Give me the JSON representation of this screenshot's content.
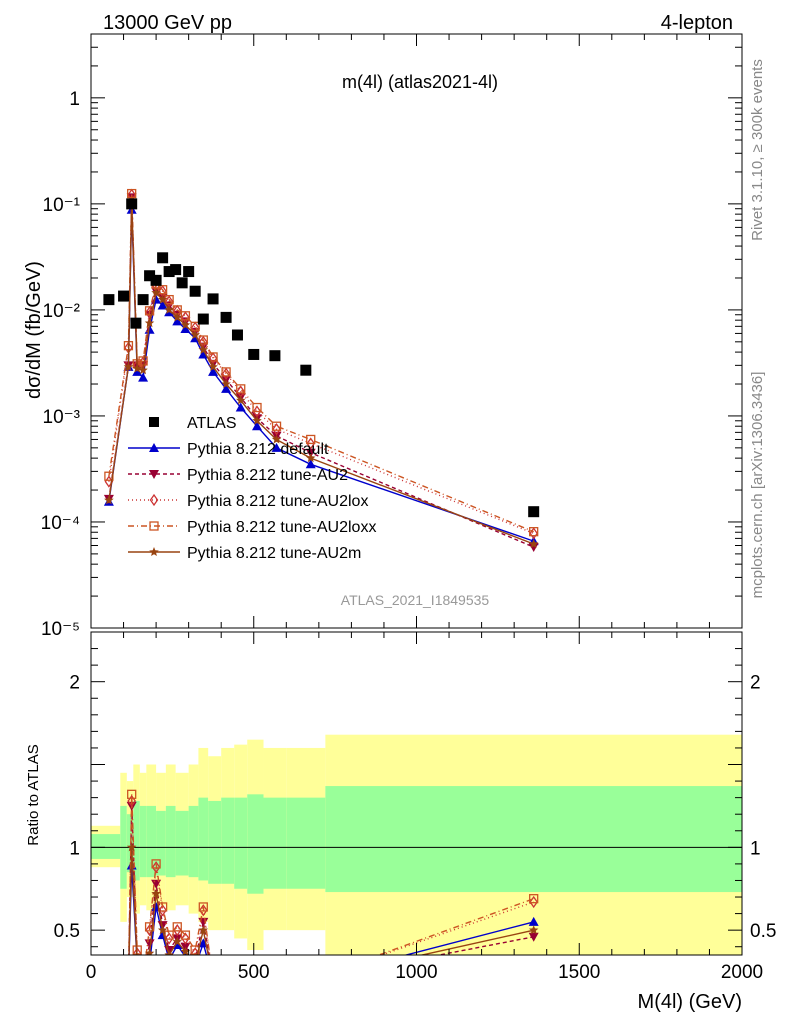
{
  "header": {
    "left": "13000 GeV pp",
    "right": "4-lepton"
  },
  "side_labels": {
    "rivet": "Rivet 3.1.10, ≥ 300k events",
    "mcplots": "mcplots.cern.ch [arXiv:1306.3436]"
  },
  "chart_data": {
    "type": "line",
    "title": "m(4l) (atlas2021-4l)",
    "watermark": "ATLAS_2021_I1849535",
    "xlabel": "M(4l) (GeV)",
    "ylabel": "dσ/dM (fb/GeV)",
    "ratio_ylabel": "Ratio to ATLAS",
    "xlim": [
      0,
      2000
    ],
    "ylim": [
      1e-05,
      4
    ],
    "ylog": true,
    "ratio_ylim": [
      0.35,
      2.3
    ],
    "x_ticks": [
      "0",
      "500",
      "1000",
      "1500",
      "2000"
    ],
    "y_ticks": [
      "10⁻⁵",
      "10⁻⁴",
      "10⁻³",
      "10⁻²",
      "10⁻¹",
      "1"
    ],
    "ratio_ticks": [
      "0.5",
      "1",
      "2"
    ],
    "legend_position": "bottom-left",
    "data": {
      "name": "ATLAS",
      "x": [
        55,
        100,
        125,
        138,
        160,
        180,
        200,
        220,
        240,
        260,
        280,
        300,
        320,
        345,
        375,
        415,
        450,
        500,
        565,
        660,
        1360
      ],
      "y": [
        0.0125,
        0.0135,
        0.1,
        0.0075,
        0.0125,
        0.021,
        0.019,
        0.031,
        0.023,
        0.024,
        0.018,
        0.023,
        0.015,
        0.0082,
        0.0127,
        0.0085,
        0.0058,
        0.0038,
        0.0037,
        0.0027,
        0.000125
      ]
    },
    "series": [
      {
        "name": "Pythia 8.212 default",
        "color": "#0000cc",
        "dash": "",
        "marker": "triangle-up",
        "x": [
          55,
          115,
          125,
          142,
          160,
          180,
          200,
          220,
          240,
          265,
          290,
          320,
          345,
          375,
          415,
          460,
          510,
          570,
          675,
          1360
        ],
        "y": [
          0.000155,
          0.0029,
          0.088,
          0.0026,
          0.0023,
          0.0065,
          0.0125,
          0.011,
          0.0095,
          0.0078,
          0.0066,
          0.0054,
          0.0038,
          0.0026,
          0.0018,
          0.0012,
          0.0008,
          0.0005,
          0.00035,
          6.6e-05
        ],
        "ratio": [
          null,
          null,
          0.89,
          0.3,
          null,
          0.3,
          0.64,
          0.47,
          0.32,
          0.41,
          0.34,
          0.28,
          0.42,
          null,
          null,
          null,
          null,
          null,
          null,
          0.55
        ]
      },
      {
        "name": "Pythia 8.212 tune-AU2",
        "color": "#990033",
        "dash": "4,3",
        "marker": "triangle-down",
        "x": [
          55,
          115,
          125,
          142,
          160,
          180,
          200,
          220,
          240,
          265,
          290,
          320,
          345,
          375,
          415,
          460,
          510,
          570,
          675,
          1360
        ],
        "y": [
          0.000165,
          0.003,
          0.115,
          0.003,
          0.003,
          0.009,
          0.015,
          0.013,
          0.011,
          0.009,
          0.0078,
          0.0062,
          0.0045,
          0.0031,
          0.0022,
          0.0015,
          0.00095,
          0.00065,
          0.00045,
          5.8e-05
        ],
        "ratio": [
          null,
          null,
          1.25,
          0.32,
          null,
          0.42,
          0.78,
          0.53,
          0.38,
          0.45,
          0.4,
          0.32,
          0.55,
          null,
          null,
          null,
          null,
          null,
          null,
          0.46
        ]
      },
      {
        "name": "Pythia 8.212 tune-AU2lox",
        "color": "#cc3333",
        "dash": "1,3",
        "marker": "diamond",
        "x": [
          55,
          115,
          125,
          142,
          160,
          180,
          200,
          220,
          240,
          265,
          290,
          320,
          345,
          375,
          415,
          460,
          510,
          570,
          675,
          1360
        ],
        "y": [
          0.00024,
          0.0044,
          0.122,
          0.003,
          0.0032,
          0.0095,
          0.017,
          0.015,
          0.012,
          0.0098,
          0.0085,
          0.0068,
          0.005,
          0.0035,
          0.0025,
          0.0017,
          0.0011,
          0.00075,
          0.00055,
          7.8e-05
        ],
        "ratio": [
          null,
          null,
          1.28,
          0.36,
          null,
          0.5,
          0.88,
          0.62,
          0.45,
          0.5,
          0.45,
          0.36,
          0.62,
          null,
          null,
          null,
          null,
          null,
          null,
          0.67
        ]
      },
      {
        "name": "Pythia 8.212 tune-AU2loxx",
        "color": "#cc5522",
        "dash": "6,3,1,3",
        "marker": "square-open",
        "x": [
          55,
          115,
          125,
          142,
          160,
          180,
          200,
          220,
          240,
          265,
          290,
          320,
          345,
          375,
          415,
          460,
          510,
          570,
          675,
          1360
        ],
        "y": [
          0.00027,
          0.0046,
          0.125,
          0.0031,
          0.0033,
          0.0098,
          0.0175,
          0.0155,
          0.0125,
          0.01,
          0.0088,
          0.007,
          0.0052,
          0.0036,
          0.0026,
          0.0018,
          0.0012,
          0.0008,
          0.0006,
          8.1e-05
        ],
        "ratio": [
          null,
          null,
          1.32,
          0.38,
          null,
          0.52,
          0.9,
          0.64,
          0.47,
          0.52,
          0.47,
          0.38,
          0.64,
          null,
          null,
          null,
          null,
          null,
          null,
          0.69
        ]
      },
      {
        "name": "Pythia 8.212 tune-AU2m",
        "color": "#994411",
        "dash": "",
        "marker": "star",
        "x": [
          55,
          115,
          125,
          142,
          160,
          180,
          200,
          220,
          240,
          265,
          290,
          320,
          345,
          375,
          415,
          460,
          510,
          570,
          675,
          1360
        ],
        "y": [
          0.00016,
          0.0029,
          0.1,
          0.0028,
          0.0027,
          0.0075,
          0.0145,
          0.0125,
          0.01,
          0.0085,
          0.0072,
          0.0058,
          0.0042,
          0.0029,
          0.002,
          0.0014,
          0.0009,
          0.0006,
          0.0004,
          6.2e-05
        ],
        "ratio": [
          null,
          null,
          1.0,
          0.3,
          null,
          0.36,
          0.72,
          0.5,
          0.35,
          0.43,
          0.37,
          0.3,
          0.5,
          null,
          null,
          null,
          null,
          null,
          null,
          0.5
        ]
      }
    ],
    "ratio_bands": {
      "inner_color": "#99ff99",
      "outer_color": "#ffff99",
      "bins": [
        {
          "x0": 0,
          "x1": 90,
          "inner": [
            0.93,
            1.08
          ],
          "outer": [
            0.88,
            1.13
          ]
        },
        {
          "x0": 90,
          "x1": 110,
          "inner": [
            0.75,
            1.25
          ],
          "outer": [
            0.55,
            1.45
          ]
        },
        {
          "x0": 110,
          "x1": 130,
          "inner": [
            0.85,
            1.2
          ],
          "outer": [
            0.7,
            1.4
          ]
        },
        {
          "x0": 130,
          "x1": 150,
          "inner": [
            0.8,
            1.28
          ],
          "outer": [
            0.6,
            1.5
          ]
        },
        {
          "x0": 150,
          "x1": 170,
          "inner": [
            0.82,
            1.25
          ],
          "outer": [
            0.65,
            1.45
          ]
        },
        {
          "x0": 170,
          "x1": 200,
          "inner": [
            0.82,
            1.25
          ],
          "outer": [
            0.62,
            1.5
          ]
        },
        {
          "x0": 200,
          "x1": 230,
          "inner": [
            0.83,
            1.22
          ],
          "outer": [
            0.65,
            1.45
          ]
        },
        {
          "x0": 230,
          "x1": 260,
          "inner": [
            0.82,
            1.25
          ],
          "outer": [
            0.62,
            1.5
          ]
        },
        {
          "x0": 260,
          "x1": 300,
          "inner": [
            0.83,
            1.22
          ],
          "outer": [
            0.65,
            1.45
          ]
        },
        {
          "x0": 300,
          "x1": 330,
          "inner": [
            0.82,
            1.25
          ],
          "outer": [
            0.6,
            1.5
          ]
        },
        {
          "x0": 330,
          "x1": 360,
          "inner": [
            0.8,
            1.3
          ],
          "outer": [
            0.55,
            1.6
          ]
        },
        {
          "x0": 360,
          "x1": 400,
          "inner": [
            0.78,
            1.28
          ],
          "outer": [
            0.5,
            1.55
          ]
        },
        {
          "x0": 400,
          "x1": 440,
          "inner": [
            0.78,
            1.3
          ],
          "outer": [
            0.5,
            1.6
          ]
        },
        {
          "x0": 440,
          "x1": 480,
          "inner": [
            0.75,
            1.3
          ],
          "outer": [
            0.45,
            1.62
          ]
        },
        {
          "x0": 480,
          "x1": 530,
          "inner": [
            0.72,
            1.32
          ],
          "outer": [
            0.38,
            1.65
          ]
        },
        {
          "x0": 530,
          "x1": 600,
          "inner": [
            0.75,
            1.3
          ],
          "outer": [
            0.5,
            1.6
          ]
        },
        {
          "x0": 600,
          "x1": 720,
          "inner": [
            0.75,
            1.3
          ],
          "outer": [
            0.5,
            1.6
          ]
        },
        {
          "x0": 720,
          "x1": 2000,
          "inner": [
            0.73,
            1.37
          ],
          "outer": [
            0.35,
            1.68
          ]
        }
      ]
    }
  }
}
